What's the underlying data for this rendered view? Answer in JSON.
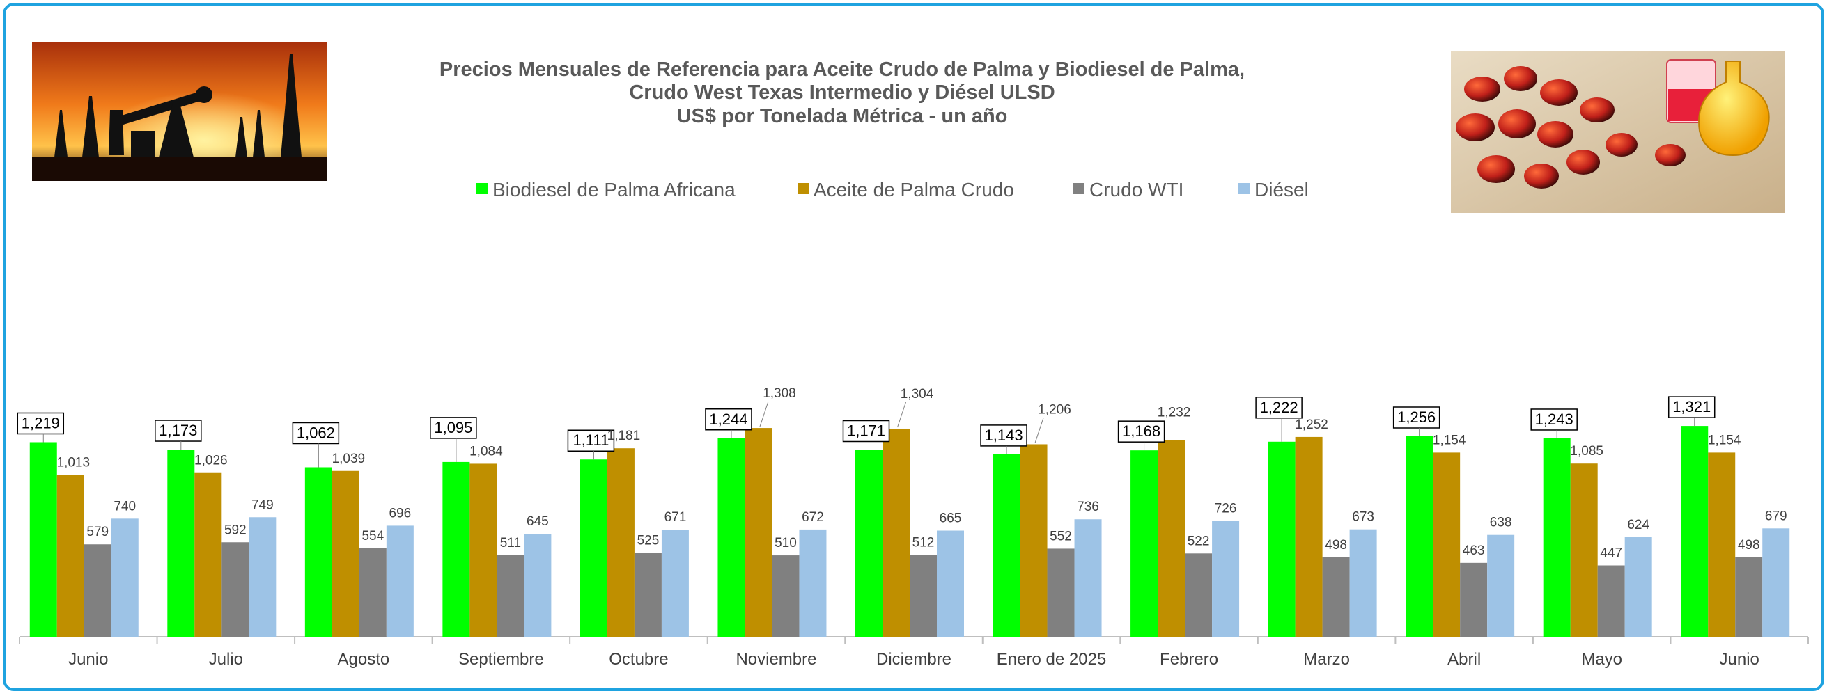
{
  "chart_data": {
    "type": "bar",
    "title": [
      "Precios Mensuales de Referencia para Aceite Crudo de Palma y Biodiesel de Palma,",
      "Crudo West Texas Intermedio y Diésel ULSD",
      "US$ por Tonelada Métrica - un año"
    ],
    "categories": [
      "Junio",
      "Julio",
      "Agosto",
      "Septiembre",
      "Octubre",
      "Noviembre",
      "Diciembre",
      "Enero de 2025",
      "Febrero",
      "Marzo",
      "Abril",
      "Mayo",
      "Junio"
    ],
    "series": [
      {
        "name": "Biodiesel de Palma Africana",
        "color": "#00ff00",
        "values": [
          1219,
          1173,
          1062,
          1095,
          1111,
          1244,
          1171,
          1143,
          1168,
          1222,
          1256,
          1243,
          1321
        ],
        "labels": [
          "1,219",
          "1,173",
          "1,062",
          "1,095",
          "1,111",
          "1,244",
          "1,171",
          "1,143",
          "1,168",
          "1,222",
          "1,256",
          "1,243",
          "1,321"
        ]
      },
      {
        "name": "Aceite de Palma Crudo",
        "color": "#bf8f00",
        "values": [
          1013,
          1026,
          1039,
          1084,
          1181,
          1308,
          1304,
          1206,
          1232,
          1252,
          1154,
          1085,
          1154
        ],
        "labels": [
          "1,013",
          "1,026",
          "1,039",
          "1,084",
          "1,181",
          "1,308",
          "1,304",
          "1,206",
          "1,232",
          "1,252",
          "1,154",
          "1,085",
          "1,154"
        ]
      },
      {
        "name": "Crudo WTI",
        "color": "#808080",
        "values": [
          579,
          592,
          554,
          511,
          525,
          510,
          512,
          552,
          522,
          498,
          463,
          447,
          498
        ],
        "labels": [
          "579",
          "592",
          "554",
          "511",
          "525",
          "510",
          "512",
          "552",
          "522",
          "498",
          "463",
          "447",
          "498"
        ]
      },
      {
        "name": "Diésel",
        "color": "#9dc3e6",
        "values": [
          740,
          749,
          696,
          645,
          671,
          672,
          665,
          736,
          726,
          673,
          638,
          624,
          679
        ],
        "labels": [
          "740",
          "749",
          "696",
          "645",
          "671",
          "672",
          "665",
          "736",
          "726",
          "673",
          "638",
          "624",
          "679"
        ]
      }
    ],
    "ylim": [
      0,
      1400
    ],
    "grid": false,
    "legend_position": "top-center",
    "xlabel": "",
    "ylabel": ""
  }
}
